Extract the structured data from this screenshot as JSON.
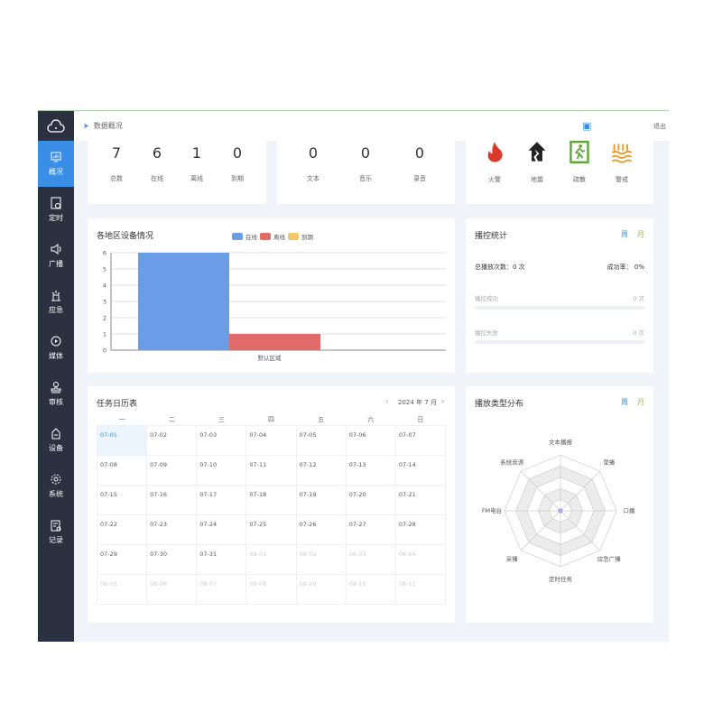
{
  "header": {
    "breadcrumb": "数据概况",
    "logout": "退出"
  },
  "sidebar": {
    "items": [
      {
        "label": "概况",
        "icon": "monitor-chart-icon",
        "active": true
      },
      {
        "label": "定时",
        "icon": "schedule-icon"
      },
      {
        "label": "广播",
        "icon": "speaker-icon"
      },
      {
        "label": "应急",
        "icon": "emergency-icon"
      },
      {
        "label": "媒体",
        "icon": "media-play-icon"
      },
      {
        "label": "审核",
        "icon": "stamp-icon"
      },
      {
        "label": "设备",
        "icon": "device-icon"
      },
      {
        "label": "系统",
        "icon": "gear-icon"
      },
      {
        "label": "记录",
        "icon": "record-icon"
      }
    ]
  },
  "devices": [
    {
      "value": "7",
      "label": "总数"
    },
    {
      "value": "6",
      "label": "在线"
    },
    {
      "value": "1",
      "label": "离线"
    },
    {
      "value": "0",
      "label": "到期"
    }
  ],
  "media": [
    {
      "value": "0",
      "label": "文本"
    },
    {
      "value": "0",
      "label": "音乐"
    },
    {
      "value": "0",
      "label": "录音"
    }
  ],
  "emergency": [
    {
      "label": "火警",
      "icon": "fire-icon",
      "color": "#d93a2b"
    },
    {
      "label": "地震",
      "icon": "earthquake-icon",
      "color": "#222222"
    },
    {
      "label": "疏散",
      "icon": "exit-icon",
      "color": "#5aa832"
    },
    {
      "label": "警戒",
      "icon": "flood-icon",
      "color": "#e89a2c"
    }
  ],
  "chart_data": {
    "type": "bar",
    "title": "各地区设备情况",
    "categories": [
      "默认区域"
    ],
    "series": [
      {
        "name": "在线",
        "values": [
          6
        ],
        "color": "#6a9de6"
      },
      {
        "name": "离线",
        "values": [
          1
        ],
        "color": "#e06b68"
      },
      {
        "name": "到期",
        "values": [
          0
        ],
        "color": "#f3c86a"
      }
    ],
    "ylim": [
      0,
      6
    ],
    "yticks": [
      "0",
      "1",
      "2",
      "3",
      "4",
      "5",
      "6"
    ],
    "legend": "top-center",
    "grid": true
  },
  "stats": {
    "title": "播控统计",
    "week": "周",
    "month": "月",
    "total": "总播放次数：0 次",
    "rate": "成功率：  0%",
    "success_label": "播控成功",
    "success_value": "0 次",
    "fail_label": "播控失败",
    "fail_value": "0 次"
  },
  "calendar": {
    "title": "任务日历表",
    "month": "2024 年 7 月",
    "current": "07",
    "weekdays": [
      "一",
      "二",
      "三",
      "四",
      "五",
      "六",
      "日"
    ],
    "weeks": [
      [
        "07-01",
        "07-02",
        "07-03",
        "07-04",
        "07-05",
        "07-06",
        "07-07"
      ],
      [
        "07-08",
        "07-09",
        "07-10",
        "07-11",
        "07-12",
        "07-13",
        "07-14"
      ],
      [
        "07-15",
        "07-16",
        "07-17",
        "07-18",
        "07-19",
        "07-20",
        "07-21"
      ],
      [
        "07-22",
        "07-23",
        "07-24",
        "07-25",
        "07-26",
        "07-27",
        "07-28"
      ],
      [
        "07-29",
        "07-30",
        "07-31",
        "08-01",
        "08-02",
        "08-03",
        "08-04"
      ],
      [
        "08-05",
        "08-06",
        "08-07",
        "08-08",
        "08-09",
        "08-10",
        "08-11"
      ]
    ],
    "selected": "07-01"
  },
  "radar": {
    "title": "播放类型分布",
    "week": "周",
    "month": "月",
    "axes": [
      "文本播报",
      "录播",
      "口播",
      "应急广播",
      "定时任务",
      "采播",
      "FM电台",
      "系统音源"
    ],
    "values": [
      0,
      0,
      0,
      0,
      0,
      0,
      0,
      0
    ]
  }
}
